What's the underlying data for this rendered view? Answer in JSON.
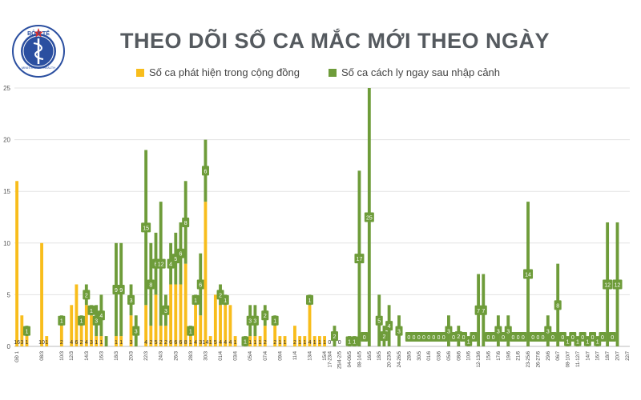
{
  "logo": {
    "top_text": "BỘ Y TẾ",
    "bottom_text": "MINISTRY OF HEALTH"
  },
  "title": "THEO DÕI SỐ CA MẮC MỚI THEO NGÀY",
  "legend": {
    "community": "Số ca phát hiện trong cộng đồng",
    "quarantine": "Số ca cách ly ngay sau nhập cảnh"
  },
  "colors": {
    "community": "#f8bd1c",
    "quarantine": "#6e9c3a",
    "label_text": "#ffffff"
  },
  "chart_data": {
    "type": "bar",
    "stacked": true,
    "title": "THEO DÕI SỐ CA MẮC MỚI THEO NGÀY",
    "ylim": [
      0,
      25
    ],
    "yticks": [
      0,
      5,
      10,
      15,
      20,
      25
    ],
    "grid": true,
    "legend_position": "top",
    "categories": [
      "GĐ 1",
      "",
      "",
      "",
      "",
      "08/3",
      "",
      "",
      "",
      "10/3",
      "",
      "12/3",
      "",
      "",
      "14/3",
      "",
      "",
      "16/3",
      "",
      "",
      "18/3",
      "",
      "",
      "20/3",
      "",
      "",
      "22/3",
      "",
      "",
      "24/3",
      "",
      "",
      "26/3",
      "",
      "",
      "28/3",
      "",
      "",
      "30/3",
      "",
      "",
      "01/4",
      "",
      "",
      "03/4",
      "",
      "",
      "05/4",
      "",
      "",
      "07/4",
      "",
      "",
      "09/4",
      "",
      "",
      "11/4",
      "",
      "",
      "13/4",
      "",
      "",
      "15/4",
      "17-23/4",
      "",
      "25/4-2/5",
      "",
      "04-06/5",
      "",
      "08-14/5",
      "",
      "16/5",
      "",
      "18/5",
      "",
      "20-23/5",
      "",
      "24-26/5",
      "",
      "28/5",
      "",
      "30/5",
      "",
      "01/6",
      "",
      "03/6",
      "",
      "05/6",
      "",
      "08/6",
      "",
      "10/6",
      "",
      "12-13/6",
      "",
      "15/6",
      "",
      "17/6",
      "",
      "19/6",
      "",
      "21/6",
      "",
      "23-25/6",
      "",
      "26-27/6",
      "",
      "29/6",
      "",
      "06/7",
      "",
      "08-10/7",
      "",
      "11-12/7",
      "",
      "14/7",
      "",
      "16/7",
      "",
      "18/7",
      "",
      "20/7",
      "",
      "22/7"
    ],
    "series": [
      {
        "name": "Số ca phát hiện trong cộng đồng",
        "values": [
          16,
          3,
          1,
          0,
          0,
          10,
          1,
          0,
          0,
          2,
          0,
          4,
          6,
          2,
          4,
          3,
          1,
          1,
          0,
          0,
          1,
          1,
          0,
          3,
          0,
          0,
          4,
          2,
          5,
          2,
          2,
          6,
          6,
          6,
          8,
          1,
          4,
          3,
          14,
          1,
          5,
          4,
          4,
          4,
          1,
          0,
          0,
          1,
          1,
          1,
          2,
          0,
          2,
          1,
          1,
          0,
          2,
          1,
          1,
          4,
          1,
          1,
          1,
          0,
          0,
          0,
          0,
          0,
          0,
          0,
          0,
          0,
          0,
          0,
          0,
          0,
          0,
          0,
          0,
          0,
          0,
          0,
          0,
          0,
          0,
          0,
          0,
          0,
          0,
          0,
          0,
          0,
          0,
          0,
          0,
          0,
          0,
          0,
          0,
          0,
          0,
          0,
          0,
          0,
          0,
          0,
          0,
          0,
          0,
          0,
          0,
          0,
          0,
          0,
          0,
          0,
          0,
          0,
          0,
          0,
          0,
          0,
          0,
          0
        ]
      },
      {
        "name": "Số ca cách ly ngay sau nhập cảnh",
        "values": [
          0,
          0,
          1,
          0,
          0,
          0,
          0,
          0,
          0,
          1,
          0,
          0,
          0,
          1,
          2,
          1,
          3,
          4,
          1,
          0,
          9,
          9,
          0,
          3,
          3,
          0,
          15,
          8,
          6,
          12,
          3,
          4,
          5,
          6,
          8,
          1,
          1,
          6,
          6,
          0,
          0,
          2,
          1,
          0,
          0,
          0,
          1,
          3,
          3,
          0,
          2,
          0,
          1,
          0,
          0,
          0,
          0,
          0,
          0,
          1,
          0,
          0,
          0,
          0,
          2,
          0,
          0,
          1,
          1,
          17,
          0,
          25,
          0,
          5,
          2,
          4,
          0,
          3,
          0,
          0,
          0,
          0,
          0,
          0,
          0,
          0,
          0,
          3,
          0,
          2,
          0,
          1,
          0,
          7,
          7,
          0,
          0,
          3,
          0,
          3,
          0,
          0,
          0,
          14,
          0,
          0,
          0,
          3,
          0,
          8,
          0,
          1,
          0,
          1,
          0,
          1,
          0,
          1,
          0,
          12,
          0,
          12,
          0,
          0
        ]
      }
    ],
    "bar_labels": {
      "community": [
        "16",
        "3",
        "1",
        "",
        "",
        "10",
        "1",
        "",
        "",
        "2",
        "",
        "4",
        "6",
        "2",
        "4",
        "3",
        "1",
        "1",
        "",
        "",
        "1",
        "1",
        "",
        "3",
        "",
        "",
        "4",
        "2",
        "5",
        "2",
        "2",
        "6",
        "6",
        "6",
        "8",
        "1",
        "4",
        "3",
        "14",
        "1",
        "5",
        "4",
        "4",
        "4",
        "1",
        "",
        "",
        "1",
        "1",
        "1",
        "2",
        "",
        "2",
        "1",
        "1",
        "",
        "2",
        "1",
        "1",
        "4",
        "1",
        "1",
        "1",
        "0",
        "",
        "0",
        "",
        "0",
        "",
        "",
        "",
        "",
        "",
        "",
        "",
        "",
        "",
        "",
        "",
        "",
        "",
        "",
        "",
        "",
        "",
        "",
        "",
        "",
        "",
        "",
        "",
        "",
        "",
        "",
        "",
        "",
        "",
        "",
        "",
        "",
        "",
        "",
        "",
        "",
        "",
        "",
        "",
        "",
        "",
        "",
        "",
        "",
        "",
        "",
        "",
        "",
        "",
        "",
        "",
        "",
        "",
        "",
        "",
        ""
      ],
      "quarantine": [
        "",
        "",
        "1",
        "",
        "",
        "",
        "",
        "",
        "",
        "1",
        "",
        "",
        "",
        "1",
        "2",
        "1",
        "3",
        "4",
        "",
        "",
        "9",
        "9",
        "",
        "3",
        "3",
        "",
        "15",
        "8",
        "6",
        "12",
        "3",
        "4",
        "5",
        "6",
        "8",
        "1",
        "1",
        "6",
        "6",
        "",
        "",
        "2",
        "1",
        "",
        "",
        "",
        "1",
        "3",
        "3",
        "",
        "2",
        "",
        "1",
        "",
        "",
        "",
        "",
        "",
        "",
        "1",
        "",
        "",
        "",
        "",
        "2",
        "",
        "",
        "1",
        "1",
        "17",
        "0",
        "25",
        "",
        "5",
        "2",
        "4",
        "",
        "3",
        "",
        "0",
        "0",
        "0",
        "0",
        "0",
        "0",
        "0",
        "0",
        "3",
        "0",
        "2",
        "0",
        "1",
        "0",
        "7",
        "7",
        "0",
        "0",
        "3",
        "0",
        "3",
        "0",
        "0",
        "0",
        "14",
        "0",
        "0",
        "0",
        "3",
        "0",
        "8",
        "0",
        "1",
        "0",
        "1",
        "0",
        "1",
        "0",
        "1",
        "0",
        "12",
        "0",
        "12",
        "",
        ""
      ]
    }
  }
}
